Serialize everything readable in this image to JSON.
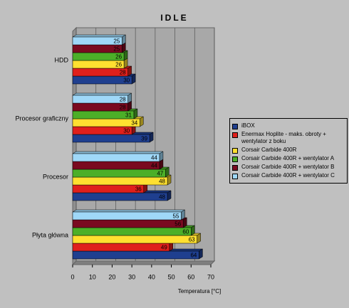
{
  "chart_data": {
    "type": "bar",
    "orientation": "horizontal",
    "title": "IDLE",
    "x_label": "Temperatura [°C]",
    "categories": [
      "HDD",
      "Procesor graficzny",
      "Procesor",
      "Płyta główna"
    ],
    "series": [
      {
        "name": "iBOX",
        "color": "#1f3f8f",
        "values": [
          30,
          39,
          48,
          64
        ]
      },
      {
        "name": "Enermax Hoplite -  maks. obroty + wentylator z boku",
        "color": "#e0201c",
        "values": [
          28,
          30,
          36,
          49
        ]
      },
      {
        "name": "Corsair Carbide 400R",
        "color": "#ffe030",
        "values": [
          26,
          34,
          48,
          63
        ]
      },
      {
        "name": "Corsair Carbide 400R + wentylator A",
        "color": "#4caf28",
        "values": [
          26,
          31,
          47,
          60
        ]
      },
      {
        "name": "Corsair Carbide 400R + wentylator B",
        "color": "#7a0a20",
        "values": [
          25,
          28,
          44,
          56
        ]
      },
      {
        "name": "Corsair Carbide 400R + wentylator C",
        "color": "#9fd8f8",
        "values": [
          25,
          28,
          44,
          55
        ]
      }
    ],
    "xlim": [
      0,
      70
    ],
    "xticks": [
      0,
      10,
      20,
      30,
      40,
      50,
      60,
      70
    ],
    "grid": true
  }
}
